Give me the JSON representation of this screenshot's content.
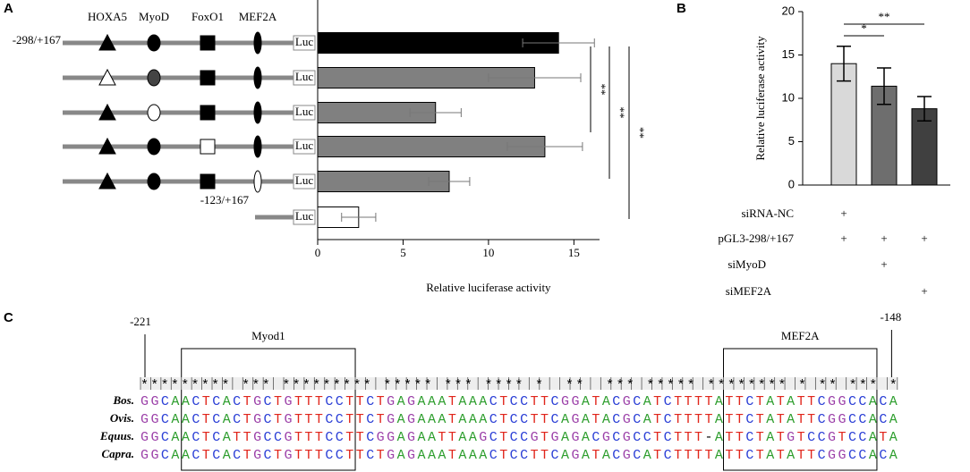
{
  "chart_data": [
    {
      "type": "hbar",
      "panel": "A",
      "site_labels": [
        "HOXA5",
        "MyoD",
        "FoxO1",
        "MEF2A"
      ],
      "luc_label": "Luc",
      "categories": [
        "-298/+167",
        null,
        null,
        null,
        null,
        "-123/+167"
      ],
      "values": [
        14.1,
        12.7,
        6.9,
        13.3,
        7.7,
        2.4
      ],
      "errors": [
        2.1,
        2.7,
        1.5,
        2.2,
        1.2,
        1.0
      ],
      "colors": [
        "#000000",
        "#808080",
        "#808080",
        "#808080",
        "#808080",
        "#ffffff"
      ],
      "xlim": [
        0,
        16.5
      ],
      "xticks": [
        0,
        5,
        10,
        15
      ],
      "xlabel": "Relative luciferase activity",
      "annotations": [
        "**",
        "**",
        "**"
      ]
    },
    {
      "type": "bar",
      "panel": "B",
      "values": [
        14.0,
        11.4,
        8.8
      ],
      "errors": [
        2.0,
        2.1,
        1.4
      ],
      "colors": [
        "#d9d9d9",
        "#6e6e6e",
        "#404040"
      ],
      "ylim": [
        0,
        20
      ],
      "yticks": [
        0,
        5,
        10,
        15,
        20
      ],
      "ylabel": "Relative luciferase activity",
      "annotations": [
        "*",
        "**"
      ],
      "conditions": [
        {
          "label": "siRNA-NC",
          "marks": [
            "+",
            null,
            null
          ]
        },
        {
          "label": "pGL3-298/+167",
          "marks": [
            "+",
            "+",
            "+"
          ]
        },
        {
          "label": "siMyoD",
          "marks": [
            null,
            "+",
            null
          ]
        },
        {
          "label": "siMEF2A",
          "marks": [
            null,
            null,
            "+"
          ]
        }
      ]
    }
  ],
  "alignment": {
    "panel": "C",
    "start_label": "-221",
    "end_label": "-148",
    "motifs": [
      "Myod1",
      "MEF2A"
    ],
    "conservation": "********* *** ********* ***** *** **** *  **  *** ***** ******** * ** *** *",
    "species": [
      {
        "name": "Bos.",
        "sequence": "GGCAACTCACTGCTGTTTCCTTCTGAGAAATAAACTCCTTCGGATACGCATCTTTTATTCTATATTCGGCCACA"
      },
      {
        "name": "Ovis.",
        "sequence": "GGCAACTCACTGCTGTTTCCTTCTGAGAAATAAACTCCTTCAGATACGCATCTTTTATTCTATATTCGGCCACA"
      },
      {
        "name": "Equus.",
        "sequence": "GGCAACTCATTGCCGTTTCCTTCGGAGAATTAAGCTCCGTGAGACGCGCCTCTTT-ATTCTATGTCCGTCCATA"
      },
      {
        "name": "Capra.",
        "sequence": "GGCAACTCACTGCTGTTTCCTTCTGAGAAATAAACTCCTTCAGATACGCATCTTTTATTCTATATTCGGCCACA"
      }
    ]
  }
}
